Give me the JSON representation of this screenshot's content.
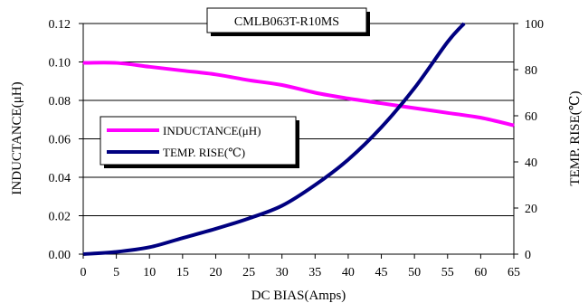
{
  "chart_data": {
    "type": "line",
    "title": "CMLB063T-R10MS",
    "xlabel": "DC BIAS(Amps)",
    "ylabel": "INDUCTANCE(μH)",
    "y2label": "TEMP. RISE(℃)",
    "xlim": [
      0,
      65
    ],
    "ylim": [
      0,
      0.12
    ],
    "y2lim": [
      0,
      100
    ],
    "x_ticks": [
      "0",
      "5",
      "10",
      "15",
      "20",
      "25",
      "30",
      "35",
      "40",
      "45",
      "50",
      "55",
      "60",
      "65"
    ],
    "y_ticks": [
      "0.00",
      "0.02",
      "0.04",
      "0.06",
      "0.08",
      "0.10",
      "0.12"
    ],
    "y2_ticks": [
      "0",
      "20",
      "40",
      "60",
      "80",
      "100"
    ],
    "grid": "horizontal",
    "legend_position": "left",
    "series": [
      {
        "name": "INDUCTANCE(μH)",
        "axis": "left",
        "color": "#ff00ff",
        "x": [
          0,
          5,
          10,
          15,
          20,
          25,
          30,
          35,
          40,
          45,
          50,
          55,
          60,
          65
        ],
        "values": [
          0.0995,
          0.0995,
          0.0975,
          0.0955,
          0.0935,
          0.0905,
          0.088,
          0.084,
          0.081,
          0.0785,
          0.076,
          0.0735,
          0.071,
          0.067
        ]
      },
      {
        "name": "TEMP. RISE(℃)",
        "axis": "right",
        "color": "#000080",
        "x": [
          0,
          5,
          10,
          15,
          20,
          25,
          30,
          35,
          40,
          45,
          50,
          55,
          57.5
        ],
        "values": [
          0,
          1,
          3,
          7,
          11,
          15.5,
          21,
          30,
          41,
          55,
          72,
          92,
          100
        ]
      }
    ]
  }
}
